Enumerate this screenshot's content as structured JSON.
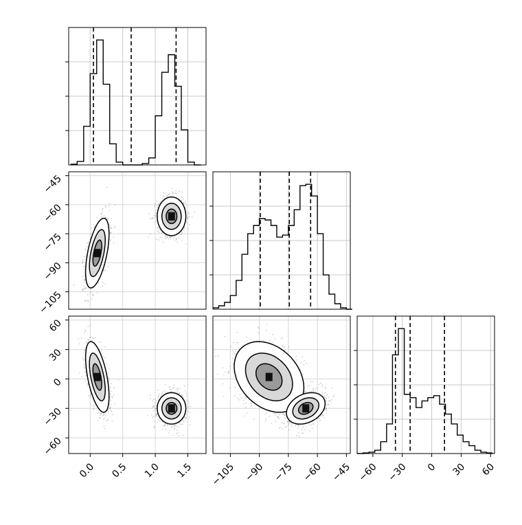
{
  "chart_data": {
    "type": "corner",
    "title": "",
    "grid": true,
    "parameters": [
      {
        "ticks": [
          0.0,
          0.5,
          1.0,
          1.5
        ],
        "tick_labels": [
          "0.0",
          "0.5",
          "1.0",
          "1.5"
        ],
        "range": [
          -0.33,
          1.78
        ]
      },
      {
        "ticks": [
          -105,
          -90,
          -75,
          -60,
          -45
        ],
        "tick_labels": [
          "−105",
          "−90",
          "−75",
          "−60",
          "−45"
        ],
        "range": [
          -114,
          -43
        ]
      },
      {
        "ticks": [
          -60,
          -30,
          0,
          30,
          60
        ],
        "tick_labels": [
          "−60",
          "−30",
          "0",
          "30",
          "60"
        ],
        "range": [
          -76,
          64
        ]
      }
    ],
    "histograms": [
      {
        "parameter": 0,
        "bin_edges": [
          -0.3,
          -0.2,
          -0.1,
          0.0,
          0.1,
          0.2,
          0.3,
          0.4,
          0.5,
          0.6,
          0.7,
          0.8,
          0.9,
          1.0,
          1.1,
          1.2,
          1.3,
          1.4,
          1.5,
          1.6,
          1.7
        ],
        "counts": [
          1,
          5,
          55,
          130,
          178,
          115,
          30,
          4,
          0,
          0,
          0,
          2,
          10,
          70,
          132,
          157,
          112,
          50,
          4,
          0
        ],
        "quantiles": [
          0.05,
          0.63,
          1.32
        ]
      },
      {
        "parameter": 1,
        "bin_edges": [
          -114,
          -111,
          -108,
          -105,
          -102,
          -99,
          -96,
          -93,
          -90,
          -87,
          -84,
          -81,
          -78,
          -75,
          -72,
          -69,
          -66,
          -63,
          -60,
          -57,
          -54,
          -51,
          -48,
          -45,
          -42
        ],
        "counts": [
          2,
          5,
          10,
          20,
          42,
          80,
          110,
          122,
          132,
          130,
          122,
          105,
          108,
          122,
          145,
          180,
          182,
          165,
          110,
          50,
          22,
          8,
          2,
          0
        ],
        "quantiles": [
          -89.5,
          -74.5,
          -63.5
        ]
      },
      {
        "parameter": 2,
        "bin_edges": [
          -76,
          -70,
          -64,
          -58,
          -52,
          -46,
          -40,
          -34,
          -28,
          -22,
          -16,
          -10,
          -4,
          2,
          8,
          14,
          20,
          26,
          32,
          38,
          44,
          50,
          56,
          62
        ],
        "counts": [
          0,
          1,
          2,
          5,
          18,
          45,
          150,
          190,
          90,
          85,
          70,
          80,
          85,
          88,
          75,
          60,
          45,
          28,
          18,
          12,
          5,
          2,
          1
        ],
        "quantiles": [
          -37,
          -22,
          13
        ]
      }
    ],
    "panels_2d": [
      {
        "x_parameter": 0,
        "y_parameter": 1,
        "clusters": [
          {
            "center": [
              0.11,
              -85
            ],
            "sigma": [
              0.09,
              9.0
            ],
            "correlation": 0.55,
            "weight": 0.5
          },
          {
            "center": [
              1.25,
              -66
            ],
            "sigma": [
              0.11,
              5.0
            ],
            "correlation": 0.0,
            "weight": 0.5
          }
        ]
      },
      {
        "x_parameter": 0,
        "y_parameter": 2,
        "clusters": [
          {
            "center": [
              0.11,
              2
            ],
            "sigma": [
              0.09,
              18
            ],
            "correlation": -0.55,
            "weight": 0.5
          },
          {
            "center": [
              1.25,
              -30
            ],
            "sigma": [
              0.11,
              8
            ],
            "correlation": 0.0,
            "weight": 0.5
          }
        ]
      },
      {
        "x_parameter": 1,
        "y_parameter": 2,
        "clusters": [
          {
            "center": [
              -85,
              2
            ],
            "sigma": [
              9.0,
              18
            ],
            "correlation": -0.3,
            "weight": 0.5
          },
          {
            "center": [
              -66,
              -30
            ],
            "sigma": [
              5.0,
              8
            ],
            "correlation": 0.3,
            "weight": 0.5
          }
        ]
      }
    ]
  }
}
